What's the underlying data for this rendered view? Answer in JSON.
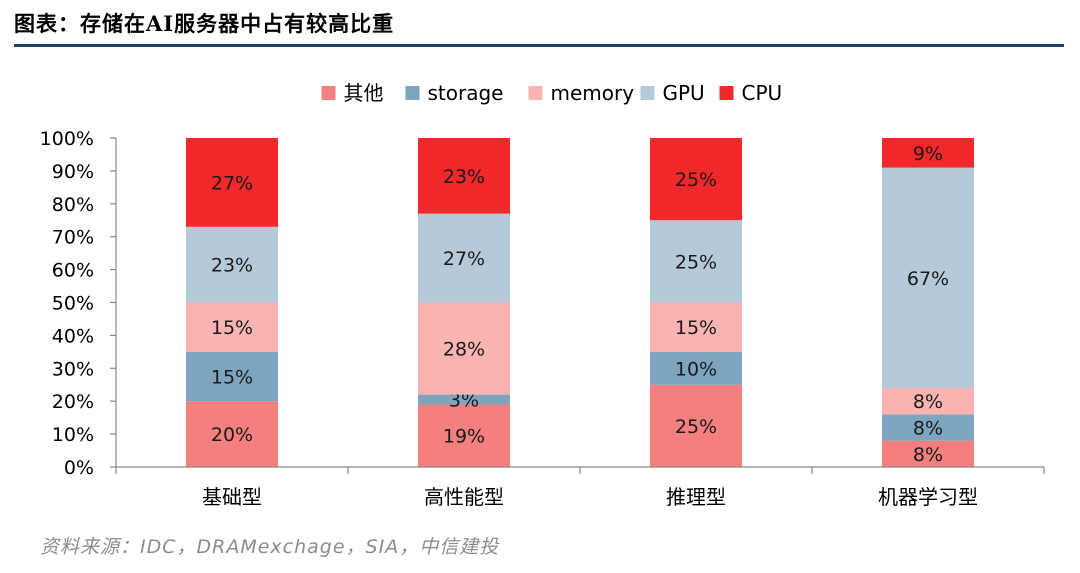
{
  "header": {
    "title": "图表：存储在AI服务器中占有较高比重"
  },
  "footer": {
    "source": "资料来源：IDC，DRAMexchage，SIA，中信建投"
  },
  "chart_data": {
    "type": "bar",
    "stacked": true,
    "categories": [
      "基础型",
      "高性能型",
      "推理型",
      "机器学习型"
    ],
    "series": [
      {
        "name": "其他",
        "color": "#f47f7f",
        "values": [
          20,
          19,
          25,
          8
        ],
        "labels": [
          "20%",
          "19%",
          "25%",
          "8%"
        ]
      },
      {
        "name": "storage",
        "color": "#7ea5c0",
        "values": [
          15,
          3,
          10,
          8
        ],
        "labels": [
          "15%",
          "3%",
          "10%",
          "8%"
        ]
      },
      {
        "name": "memory",
        "color": "#f9b3b1",
        "values": [
          15,
          28,
          15,
          8
        ],
        "labels": [
          "15%",
          "28%",
          "15%",
          "8%"
        ]
      },
      {
        "name": "GPU",
        "color": "#b5cad9",
        "values": [
          23,
          27,
          25,
          67
        ],
        "labels": [
          "23%",
          "27%",
          "25%",
          "67%"
        ]
      },
      {
        "name": "CPU",
        "color": "#f2282b",
        "values": [
          27,
          23,
          25,
          9
        ],
        "labels": [
          "27%",
          "23%",
          "25%",
          "9%"
        ]
      }
    ],
    "yticks": [
      "0%",
      "10%",
      "20%",
      "30%",
      "40%",
      "50%",
      "60%",
      "70%",
      "80%",
      "90%",
      "100%"
    ],
    "ylim": [
      0,
      100
    ],
    "legend": "top",
    "grid": false
  }
}
